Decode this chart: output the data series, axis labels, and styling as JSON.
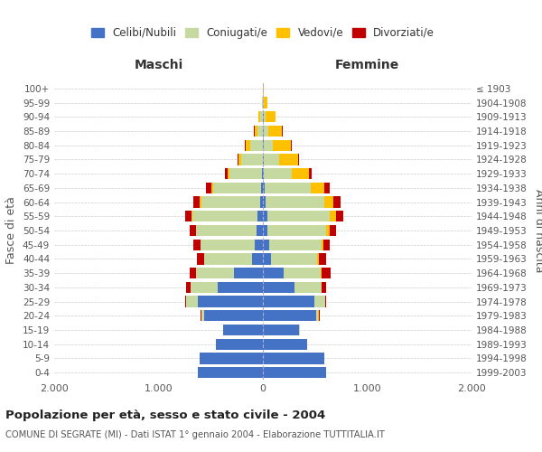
{
  "age_groups": [
    "0-4",
    "5-9",
    "10-14",
    "15-19",
    "20-24",
    "25-29",
    "30-34",
    "35-39",
    "40-44",
    "45-49",
    "50-54",
    "55-59",
    "60-64",
    "65-69",
    "70-74",
    "75-79",
    "80-84",
    "85-89",
    "90-94",
    "95-99",
    "100+"
  ],
  "birth_years": [
    "1999-2003",
    "1994-1998",
    "1989-1993",
    "1984-1988",
    "1979-1983",
    "1974-1978",
    "1969-1973",
    "1964-1968",
    "1959-1963",
    "1954-1958",
    "1949-1953",
    "1944-1948",
    "1939-1943",
    "1934-1938",
    "1929-1933",
    "1924-1928",
    "1919-1923",
    "1914-1918",
    "1909-1913",
    "1904-1908",
    "≤ 1903"
  ],
  "male_celibe": [
    620,
    610,
    450,
    380,
    560,
    620,
    430,
    280,
    100,
    75,
    60,
    55,
    30,
    18,
    12,
    0,
    0,
    0,
    0,
    0,
    0
  ],
  "male_coniugato": [
    0,
    0,
    0,
    5,
    28,
    115,
    260,
    360,
    460,
    520,
    580,
    620,
    560,
    460,
    310,
    210,
    120,
    55,
    25,
    5,
    0
  ],
  "male_vedovo": [
    0,
    0,
    0,
    0,
    5,
    5,
    5,
    5,
    5,
    5,
    5,
    10,
    12,
    15,
    18,
    22,
    45,
    25,
    15,
    5,
    0
  ],
  "male_divorziato": [
    0,
    0,
    0,
    0,
    5,
    8,
    40,
    55,
    65,
    65,
    60,
    60,
    65,
    50,
    22,
    10,
    8,
    5,
    0,
    0,
    0
  ],
  "female_nubile": [
    610,
    590,
    420,
    350,
    510,
    490,
    300,
    200,
    80,
    60,
    45,
    40,
    25,
    15,
    10,
    5,
    5,
    5,
    5,
    0,
    0
  ],
  "female_coniugata": [
    0,
    0,
    0,
    5,
    22,
    105,
    260,
    355,
    440,
    500,
    565,
    605,
    565,
    440,
    270,
    155,
    90,
    50,
    25,
    5,
    0
  ],
  "female_vedova": [
    0,
    0,
    0,
    0,
    5,
    5,
    5,
    10,
    15,
    22,
    32,
    55,
    85,
    130,
    165,
    180,
    175,
    130,
    90,
    35,
    5
  ],
  "female_divorziata": [
    0,
    0,
    0,
    0,
    5,
    8,
    42,
    85,
    68,
    62,
    62,
    68,
    72,
    52,
    22,
    10,
    8,
    5,
    0,
    0,
    0
  ],
  "color_celibe": "#4472c4",
  "color_coniugato": "#c5d9a0",
  "color_vedovo": "#ffc000",
  "color_divorziato": "#c00000",
  "xlim": 2000,
  "title": "Popolazione per età, sesso e stato civile - 2004",
  "subtitle": "COMUNE DI SEGRATE (MI) - Dati ISTAT 1° gennaio 2004 - Elaborazione TUTTITALIA.IT",
  "xlabel_left": "Maschi",
  "xlabel_right": "Femmine",
  "ylabel_left": "Fasce di età",
  "ylabel_right": "Anni di nascita",
  "legend_labels": [
    "Celibi/Nubili",
    "Coniugati/e",
    "Vedovi/e",
    "Divorziati/e"
  ],
  "bg_color": "#ffffff",
  "grid_color": "#cccccc",
  "xtick_labels": [
    "2.000",
    "1.000",
    "0",
    "1.000",
    "2.000"
  ]
}
